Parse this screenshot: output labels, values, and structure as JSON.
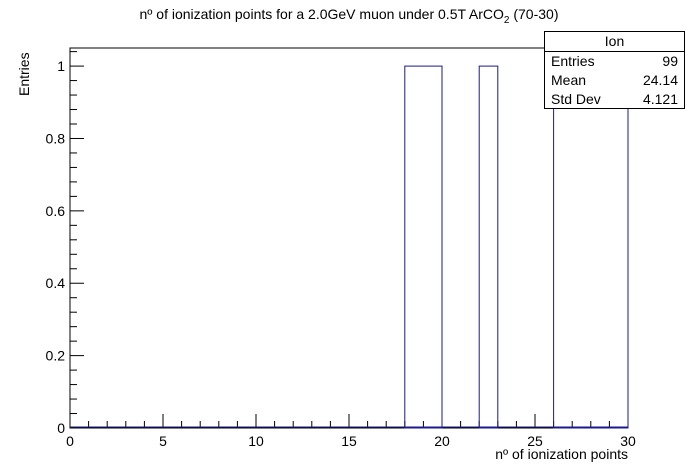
{
  "chart_data": {
    "type": "bar",
    "title_main": "nº of ionization points for a 2.0GeV muon under 0.5T ArCO",
    "title_sub": "2",
    "title_tail": " (70-30)",
    "xlabel": "nº of ionization points",
    "ylabel": "Entries",
    "xlim": [
      0,
      30
    ],
    "ylim": [
      0,
      1.05
    ],
    "xticks": [
      "0",
      "5",
      "10",
      "15",
      "20",
      "25",
      "30"
    ],
    "yticks": [
      "0",
      "0.2",
      "0.4",
      "0.6",
      "0.8",
      "1"
    ],
    "bins": [
      {
        "x0": 18,
        "x1": 20,
        "value": 1
      },
      {
        "x0": 22,
        "x1": 23,
        "value": 1
      },
      {
        "x0": 26,
        "x1": 30,
        "value": 1
      }
    ],
    "stats": {
      "name": "Ion",
      "entries_label": "Entries",
      "entries": "99",
      "mean_label": "Mean",
      "mean": "24.14",
      "stddev_label": "Std Dev",
      "stddev": "4.121"
    },
    "line_color": "#1a1a8c"
  }
}
